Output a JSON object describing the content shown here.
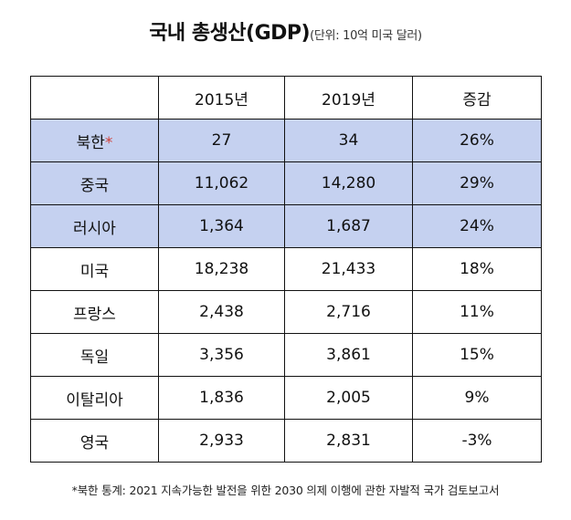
{
  "title": {
    "main": "국내 총생산(GDP)",
    "unit": "(단위: 10억 미국 달러)"
  },
  "table": {
    "headers": [
      "",
      "2015년",
      "2019년",
      "증감"
    ],
    "rows": [
      {
        "country": "북한",
        "mark": "*",
        "v2015": "27",
        "v2019": "34",
        "change": "26%",
        "highlight": true
      },
      {
        "country": "중국",
        "mark": "",
        "v2015": "11,062",
        "v2019": "14,280",
        "change": "29%",
        "highlight": true
      },
      {
        "country": "러시아",
        "mark": "",
        "v2015": "1,364",
        "v2019": "1,687",
        "change": "24%",
        "highlight": true
      },
      {
        "country": "미국",
        "mark": "",
        "v2015": "18,238",
        "v2019": "21,433",
        "change": "18%",
        "highlight": false
      },
      {
        "country": "프랑스",
        "mark": "",
        "v2015": "2,438",
        "v2019": "2,716",
        "change": "11%",
        "highlight": false
      },
      {
        "country": "독일",
        "mark": "",
        "v2015": "3,356",
        "v2019": "3,861",
        "change": "15%",
        "highlight": false
      },
      {
        "country": "이탈리아",
        "mark": "",
        "v2015": "1,836",
        "v2019": "2,005",
        "change": "9%",
        "highlight": false
      },
      {
        "country": "영국",
        "mark": "",
        "v2015": "2,933",
        "v2019": "2,831",
        "change": "-3%",
        "highlight": false
      }
    ]
  },
  "footnote": "*북한 통계: 2021 지속가능한 발전을 위한 2030 의제 이행에 관한 자발적 국가 검토보고서",
  "colors": {
    "highlight": "#c5d1f0",
    "star": "#d0403a",
    "border": "#111111"
  },
  "chart_data": {
    "type": "table",
    "title": "국내 총생산(GDP)",
    "unit": "(단위: 10억 미국 달러)",
    "columns": [
      "2015년",
      "2019년",
      "증감"
    ],
    "categories": [
      "북한",
      "중국",
      "러시아",
      "미국",
      "프랑스",
      "독일",
      "이탈리아",
      "영국"
    ],
    "series": [
      {
        "name": "2015년",
        "values": [
          27,
          11062,
          1364,
          18238,
          2438,
          3356,
          1836,
          2933
        ]
      },
      {
        "name": "2019년",
        "values": [
          34,
          14280,
          1687,
          21433,
          2716,
          3861,
          2005,
          2831
        ]
      },
      {
        "name": "증감",
        "values": [
          26,
          29,
          24,
          18,
          11,
          15,
          9,
          -3
        ]
      }
    ],
    "highlighted_categories": [
      "북한",
      "중국",
      "러시아"
    ],
    "footnote": "*북한 통계: 2021 지속가능한 발전을 위한 2030 의제 이행에 관한 자발적 국가 검토보고서"
  }
}
